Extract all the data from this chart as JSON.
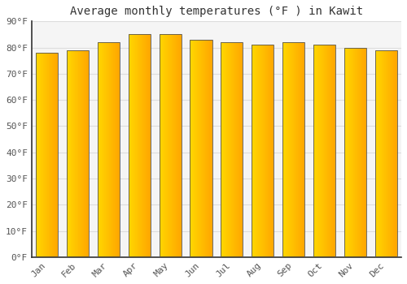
{
  "title": "Average monthly temperatures (°F ) in Kawit",
  "months": [
    "Jan",
    "Feb",
    "Mar",
    "Apr",
    "May",
    "Jun",
    "Jul",
    "Aug",
    "Sep",
    "Oct",
    "Nov",
    "Dec"
  ],
  "values": [
    78,
    79,
    82,
    85,
    85,
    83,
    82,
    81,
    82,
    81,
    80,
    79
  ],
  "ylim": [
    0,
    90
  ],
  "yticks": [
    0,
    10,
    20,
    30,
    40,
    50,
    60,
    70,
    80,
    90
  ],
  "ytick_labels": [
    "0°F",
    "10°F",
    "20°F",
    "30°F",
    "40°F",
    "50°F",
    "60°F",
    "70°F",
    "80°F",
    "90°F"
  ],
  "background_color": "#FFFFFF",
  "plot_bg_color": "#F5F5F5",
  "grid_color": "#DDDDDD",
  "title_fontsize": 10,
  "tick_fontsize": 8,
  "bar_color_left": "#FFD700",
  "bar_color_right": "#FFA500",
  "bar_edge_color": "#555555",
  "spine_color": "#333333"
}
